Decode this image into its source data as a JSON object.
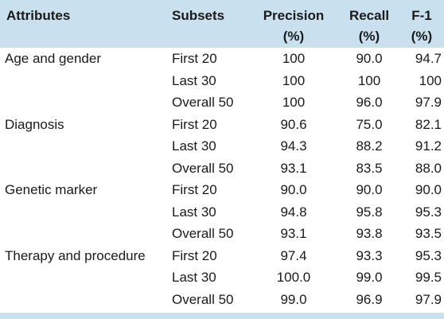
{
  "table": {
    "headers": {
      "attributes": "Attributes",
      "subsets": "Subsets",
      "precision_line1": "Precision",
      "precision_line2": "(%)",
      "recall_line1": "Recall",
      "recall_line2": "(%)",
      "f1_line1": "F-1",
      "f1_line2": "(%)"
    },
    "rows": [
      {
        "attribute": "Age and gender",
        "subset": "First 20",
        "precision": "100",
        "recall": "90.0",
        "f1": "94.7"
      },
      {
        "attribute": "",
        "subset": "Last 30",
        "precision": "100",
        "recall": "100",
        "f1": "100"
      },
      {
        "attribute": "",
        "subset": "Overall 50",
        "precision": "100",
        "recall": "96.0",
        "f1": "97.9"
      },
      {
        "attribute": "Diagnosis",
        "subset": "First 20",
        "precision": "90.6",
        "recall": "75.0",
        "f1": "82.1"
      },
      {
        "attribute": "",
        "subset": "Last 30",
        "precision": "94.3",
        "recall": "88.2",
        "f1": "91.2"
      },
      {
        "attribute": "",
        "subset": "Overall 50",
        "precision": "93.1",
        "recall": "83.5",
        "f1": "88.0"
      },
      {
        "attribute": "Genetic marker",
        "subset": "First 20",
        "precision": "90.0",
        "recall": "90.0",
        "f1": "90.0"
      },
      {
        "attribute": "",
        "subset": "Last 30",
        "precision": "94.8",
        "recall": "95.8",
        "f1": "95.3"
      },
      {
        "attribute": "",
        "subset": "Overall 50",
        "precision": "93.1",
        "recall": "93.8",
        "f1": "93.5"
      },
      {
        "attribute": "Therapy and procedure",
        "subset": "First 20",
        "precision": "97.4",
        "recall": "93.3",
        "f1": "95.3"
      },
      {
        "attribute": "",
        "subset": "Last 30",
        "precision": "100.0",
        "recall": "99.0",
        "f1": "99.5"
      },
      {
        "attribute": "",
        "subset": "Overall 50",
        "precision": "99.0",
        "recall": "96.9",
        "f1": "97.9"
      }
    ]
  }
}
